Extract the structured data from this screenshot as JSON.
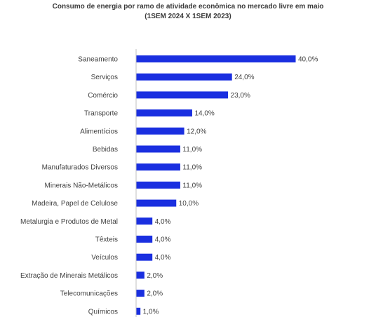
{
  "chart_data": {
    "type": "bar",
    "orientation": "horizontal",
    "title": "Consumo de energia por ramo de atividade econômica no mercado livre em maio",
    "subtitle": "(1SEM 2024 X 1SEM 2023)",
    "categories": [
      "Saneamento",
      "Serviços",
      "Comércio",
      "Transporte",
      "Alimentícios",
      "Bebidas",
      "Manufaturados Diversos",
      "Minerais Não-Metálicos",
      "Madeira, Papel de Celulose",
      "Metalurgia e Produtos de Metal",
      "Têxteis",
      "Veículos",
      "Extração de Minerais Metálicos",
      "Telecomunicações",
      "Químicos"
    ],
    "values": [
      40.0,
      24.0,
      23.0,
      14.0,
      12.0,
      11.0,
      11.0,
      11.0,
      10.0,
      4.0,
      4.0,
      4.0,
      2.0,
      2.0,
      1.0
    ],
    "data_labels": [
      "40,0%",
      "24,0%",
      "23,0%",
      "14,0%",
      "12,0%",
      "11,0%",
      "11,0%",
      "11,0%",
      "10,0%",
      "4,0%",
      "4,0%",
      "4,0%",
      "2,0%",
      "2,0%",
      "1,0%"
    ],
    "xlim": [
      0,
      40
    ],
    "grid": false,
    "colors": {
      "bar": "#1a2fe0",
      "axis": "#bfbfbf",
      "text": "#404040",
      "title": "#3a3a3a"
    }
  }
}
